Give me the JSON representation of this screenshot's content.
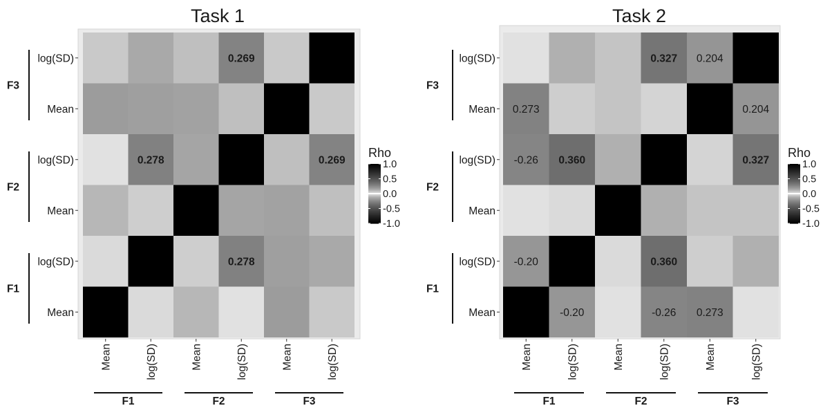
{
  "chart_data": [
    {
      "type": "heatmap",
      "title": "Task 1",
      "x_categories": [
        "Mean",
        "log(SD)",
        "Mean",
        "log(SD)",
        "Mean",
        "log(SD)"
      ],
      "y_categories": [
        "Mean",
        "log(SD)",
        "Mean",
        "log(SD)",
        "Mean",
        "log(SD)"
      ],
      "groups": [
        "F1",
        "F2",
        "F3"
      ],
      "values": [
        [
          1.0,
          0.03,
          0.1,
          0.02,
          0.18,
          0.06
        ],
        [
          0.03,
          1.0,
          0.05,
          0.278,
          0.17,
          0.14
        ],
        [
          0.1,
          0.05,
          1.0,
          0.15,
          0.16,
          0.08
        ],
        [
          0.02,
          0.278,
          0.15,
          1.0,
          0.08,
          0.269
        ],
        [
          0.18,
          0.17,
          0.16,
          0.08,
          1.0,
          0.06
        ],
        [
          0.06,
          0.14,
          0.08,
          0.269,
          0.06,
          1.0
        ]
      ],
      "labels": [
        [
          "",
          "",
          "",
          "",
          "",
          ""
        ],
        [
          "",
          "",
          "",
          "0.278",
          "",
          ""
        ],
        [
          "",
          "",
          "",
          "",
          "",
          ""
        ],
        [
          "",
          "0.278",
          "",
          "",
          "",
          "0.269"
        ],
        [
          "",
          "",
          "",
          "",
          "",
          ""
        ],
        [
          "",
          "",
          "",
          "0.269",
          "",
          ""
        ]
      ],
      "bold": [
        [
          false,
          false,
          false,
          false,
          false,
          false
        ],
        [
          false,
          false,
          false,
          true,
          false,
          false
        ],
        [
          false,
          false,
          false,
          false,
          false,
          false
        ],
        [
          false,
          true,
          false,
          false,
          false,
          true
        ],
        [
          false,
          false,
          false,
          false,
          false,
          false
        ],
        [
          false,
          false,
          false,
          true,
          false,
          false
        ]
      ],
      "legend": {
        "title": "Rho",
        "ticks": [
          "1.0",
          "0.5",
          "0.0",
          "-0.5",
          "-1.0"
        ],
        "tick_values": [
          1.0,
          0.5,
          0.0,
          -0.5,
          -1.0
        ],
        "range": [
          -1.0,
          1.0
        ]
      },
      "grid": false
    },
    {
      "type": "heatmap",
      "title": "Task 2",
      "x_categories": [
        "Mean",
        "log(SD)",
        "Mean",
        "log(SD)",
        "Mean",
        "log(SD)"
      ],
      "y_categories": [
        "Mean",
        "log(SD)",
        "Mean",
        "log(SD)",
        "Mean",
        "log(SD)"
      ],
      "groups": [
        "F1",
        "F2",
        "F3"
      ],
      "values": [
        [
          1.0,
          -0.2,
          0.02,
          -0.26,
          0.273,
          0.02
        ],
        [
          -0.2,
          1.0,
          0.03,
          0.36,
          0.05,
          0.12
        ],
        [
          0.02,
          0.03,
          1.0,
          0.12,
          0.07,
          0.07
        ],
        [
          -0.26,
          0.36,
          0.12,
          1.0,
          0.04,
          0.327
        ],
        [
          0.273,
          0.05,
          0.07,
          0.04,
          1.0,
          0.204
        ],
        [
          0.02,
          0.12,
          0.07,
          0.327,
          0.204,
          1.0
        ]
      ],
      "labels": [
        [
          "",
          "-0.20",
          "",
          "-0.26",
          "0.273",
          ""
        ],
        [
          "-0.20",
          "",
          "",
          "0.360",
          "",
          ""
        ],
        [
          "",
          "",
          "",
          "",
          "",
          ""
        ],
        [
          "-0.26",
          "0.360",
          "",
          "",
          "",
          "0.327"
        ],
        [
          "0.273",
          "",
          "",
          "",
          "",
          "0.204"
        ],
        [
          "",
          "",
          "",
          "0.327",
          "0.204",
          ""
        ]
      ],
      "bold": [
        [
          false,
          false,
          false,
          false,
          false,
          false
        ],
        [
          false,
          false,
          false,
          true,
          false,
          false
        ],
        [
          false,
          false,
          false,
          false,
          false,
          false
        ],
        [
          false,
          true,
          false,
          false,
          false,
          true
        ],
        [
          false,
          false,
          false,
          false,
          false,
          false
        ],
        [
          false,
          false,
          false,
          true,
          false,
          false
        ]
      ],
      "legend": {
        "title": "Rho",
        "ticks": [
          "1.0",
          "0.5",
          "0.0",
          "-0.5",
          "-1.0"
        ],
        "tick_values": [
          1.0,
          0.5,
          0.0,
          -0.5,
          -1.0
        ],
        "range": [
          -1.0,
          1.0
        ]
      },
      "grid": false
    }
  ]
}
